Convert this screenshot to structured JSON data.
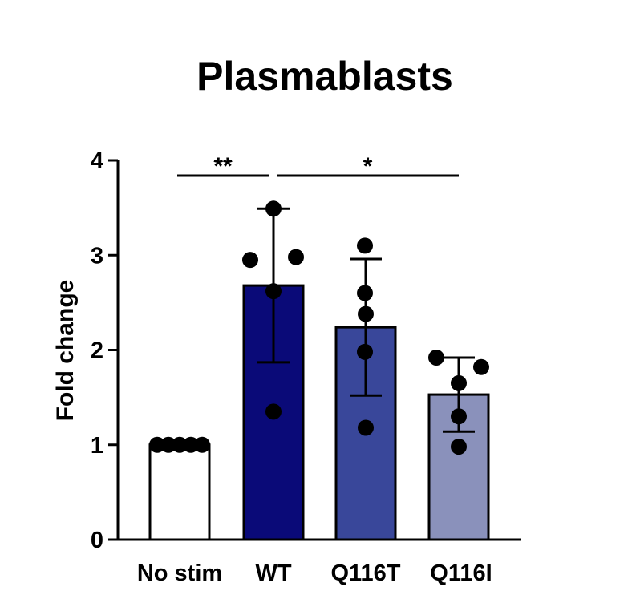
{
  "chart_data": {
    "type": "bar",
    "title": "Plasmablasts",
    "xlabel": "",
    "ylabel": "Fold change",
    "ylim": [
      0,
      4
    ],
    "yticks": [
      0,
      1,
      2,
      3,
      4
    ],
    "categories": [
      "No stim",
      "WT",
      "Q116T",
      "Q116I"
    ],
    "values": [
      1.0,
      2.68,
      2.24,
      1.53
    ],
    "errors": [
      0,
      0.81,
      0.72,
      0.39
    ],
    "bar_colors": [
      "#ffffff",
      "#0a0a78",
      "#39479a",
      "#8a91bb"
    ],
    "points": [
      [
        1.0,
        1.0,
        1.0,
        1.0,
        1.0
      ],
      [
        3.49,
        2.95,
        2.98,
        2.62,
        1.35
      ],
      [
        3.1,
        2.6,
        2.38,
        1.98,
        1.18
      ],
      [
        1.92,
        1.82,
        1.65,
        1.3,
        0.98
      ]
    ],
    "significance": [
      {
        "from": 0,
        "to": 1,
        "label": "**"
      },
      {
        "from": 1,
        "to": 3,
        "label": "*"
      }
    ],
    "grid": false,
    "legend": "none"
  }
}
